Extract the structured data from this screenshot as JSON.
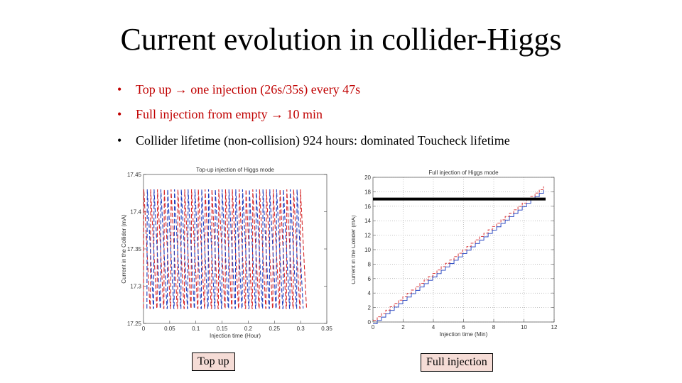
{
  "slide": {
    "title": "Current evolution in collider-Higgs",
    "bullets": [
      {
        "marker": "•",
        "text": "Top up → one injection (26s/35s) every 47s"
      },
      {
        "marker": "•",
        "text": "Full injection from empty → 10 min"
      },
      {
        "marker": "•",
        "text": "Collider lifetime (non-collision) 924 hours: dominated Toucheck lifetime"
      }
    ],
    "labels": {
      "left": "Top up",
      "right": "Full injection"
    },
    "colors": {
      "red_text": "#c00000",
      "label_fill": "#f5dcd6",
      "series_red": "#d62728",
      "series_blue": "#1f3fbf"
    }
  },
  "chart_data": [
    {
      "type": "line",
      "title": "Top-up injection of Higgs mode",
      "xlabel": "Injection time (Hour)",
      "ylabel": "Current in the Collider (mA)",
      "xlim": [
        0,
        0.35
      ],
      "ylim": [
        17.25,
        17.45
      ],
      "x_ticks": [
        "0",
        "0.05",
        "0.1",
        "0.15",
        "0.2",
        "0.25",
        "0.3",
        "0.35"
      ],
      "y_ticks": [
        "17.25",
        "17.3",
        "17.35",
        "17.4",
        "17.45"
      ],
      "series": [
        {
          "color": "red",
          "pattern": "top-up sawtooth",
          "period_hours": 0.013,
          "min": 17.27,
          "max": 17.43,
          "x_start": 0,
          "x_end": 0.3
        },
        {
          "color": "blue",
          "pattern": "top-up sawtooth",
          "period_hours": 0.013,
          "min": 17.27,
          "max": 17.43,
          "x_start": 0.0065,
          "x_end": 0.3
        }
      ]
    },
    {
      "type": "line",
      "title": "Full injection of Higgs mode",
      "xlabel": "Injection time (Min)",
      "ylabel": "Current in the Collider (mA)",
      "xlim": [
        0,
        12
      ],
      "ylim": [
        0,
        20
      ],
      "x_ticks": [
        "0",
        "2",
        "4",
        "6",
        "8",
        "10",
        "12"
      ],
      "y_ticks": [
        "0",
        "2",
        "4",
        "6",
        "8",
        "10",
        "12",
        "14",
        "16",
        "18",
        "20"
      ],
      "target_level": 17,
      "series": [
        {
          "color": "red",
          "pattern": "step ramp",
          "x": [
            0,
            11.3
          ],
          "y": [
            0,
            18.5
          ]
        },
        {
          "color": "blue",
          "pattern": "step ramp",
          "x": [
            0,
            11.3
          ],
          "y": [
            0,
            18.5
          ]
        }
      ]
    }
  ]
}
